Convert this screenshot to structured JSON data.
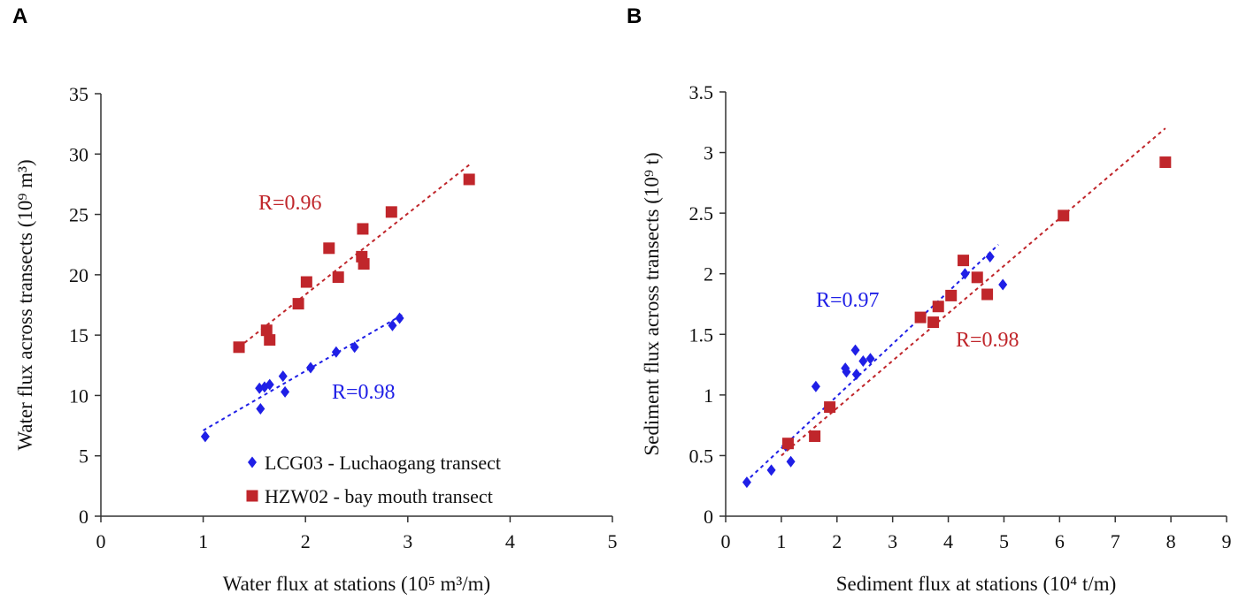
{
  "chart_data": [
    {
      "panel_label": "A",
      "type": "scatter",
      "xlabel": "Water flux at stations (10⁵ m³/m)",
      "ylabel": "Water flux across transects (10⁹ m³)",
      "xlim": [
        0,
        5
      ],
      "ylim": [
        0,
        35
      ],
      "xticks": [
        0,
        1,
        2,
        3,
        4,
        5
      ],
      "yticks": [
        0,
        5,
        10,
        15,
        20,
        25,
        30,
        35
      ],
      "legend_location": "lower-right",
      "series": [
        {
          "name": "LCG03 - Luchaogang transect",
          "marker": "diamond",
          "color": "#1f1fe6",
          "r_label": "R=0.98",
          "fit": [
            [
              1.0,
              7.1
            ],
            [
              2.95,
              16.7
            ]
          ],
          "points": [
            [
              1.02,
              6.6
            ],
            [
              1.55,
              10.6
            ],
            [
              1.56,
              8.9
            ],
            [
              1.6,
              10.7
            ],
            [
              1.65,
              10.9
            ],
            [
              1.78,
              11.6
            ],
            [
              1.8,
              10.3
            ],
            [
              2.05,
              12.3
            ],
            [
              2.3,
              13.6
            ],
            [
              2.48,
              14.0
            ],
            [
              2.85,
              15.8
            ],
            [
              2.92,
              16.4
            ]
          ]
        },
        {
          "name": "HZW02 - bay mouth transect",
          "marker": "square",
          "color": "#c0262b",
          "r_label": "R=0.96",
          "fit": [
            [
              1.35,
              14.0
            ],
            [
              3.6,
              29.1
            ]
          ],
          "points": [
            [
              1.35,
              14.0
            ],
            [
              1.62,
              15.4
            ],
            [
              1.65,
              14.6
            ],
            [
              1.93,
              17.6
            ],
            [
              2.01,
              19.4
            ],
            [
              2.23,
              22.2
            ],
            [
              2.32,
              19.8
            ],
            [
              2.55,
              21.5
            ],
            [
              2.56,
              23.8
            ],
            [
              2.57,
              20.9
            ],
            [
              2.84,
              25.2
            ],
            [
              3.6,
              27.9
            ]
          ]
        }
      ]
    },
    {
      "panel_label": "B",
      "type": "scatter",
      "xlabel": "Sediment flux at stations (10⁴ t/m)",
      "ylabel": "Sediment flux across transects (10⁹ t)",
      "xlim": [
        0,
        9
      ],
      "ylim": [
        0,
        3.5
      ],
      "xticks": [
        0,
        1,
        2,
        3,
        4,
        5,
        6,
        7,
        8,
        9
      ],
      "yticks": [
        0,
        0.5,
        1,
        1.5,
        2,
        2.5,
        3,
        3.5
      ],
      "series": [
        {
          "name": "LCG03 - Luchaogang transect",
          "marker": "diamond",
          "color": "#1f1fe6",
          "r_label": "R=0.97",
          "fit": [
            [
              0.35,
              0.28
            ],
            [
              4.9,
              2.24
            ]
          ],
          "points": [
            [
              0.38,
              0.28
            ],
            [
              0.82,
              0.38
            ],
            [
              1.08,
              0.58
            ],
            [
              1.17,
              0.45
            ],
            [
              1.62,
              1.07
            ],
            [
              2.15,
              1.22
            ],
            [
              2.17,
              1.19
            ],
            [
              2.33,
              1.37
            ],
            [
              2.35,
              1.17
            ],
            [
              2.47,
              1.28
            ],
            [
              2.6,
              1.3
            ],
            [
              4.3,
              2.0
            ],
            [
              4.75,
              2.14
            ],
            [
              4.98,
              1.91
            ]
          ]
        },
        {
          "name": "HZW02 - bay mouth transect",
          "marker": "square",
          "color": "#c0262b",
          "r_label": "R=0.98",
          "fit": [
            [
              1.0,
              0.5
            ],
            [
              7.9,
              3.2
            ]
          ],
          "points": [
            [
              1.12,
              0.6
            ],
            [
              1.6,
              0.66
            ],
            [
              1.87,
              0.9
            ],
            [
              3.5,
              1.64
            ],
            [
              3.73,
              1.6
            ],
            [
              3.82,
              1.73
            ],
            [
              4.05,
              1.82
            ],
            [
              4.27,
              2.11
            ],
            [
              4.52,
              1.97
            ],
            [
              4.7,
              1.83
            ],
            [
              6.07,
              2.48
            ],
            [
              7.9,
              2.92
            ]
          ]
        }
      ]
    }
  ]
}
